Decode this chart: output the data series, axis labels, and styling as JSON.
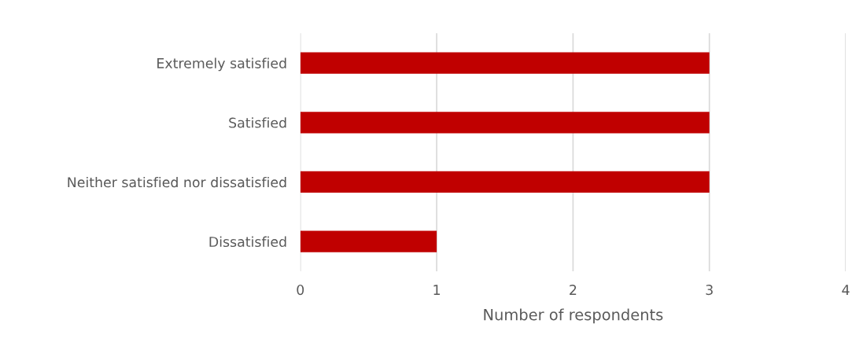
{
  "chart_data": {
    "type": "bar",
    "orientation": "horizontal",
    "xlabel": "Number of respondents",
    "categories": [
      "Extremely satisfied",
      "Satisfied",
      "Neither satisfied nor dissatisfied",
      "Dissatisfied"
    ],
    "values": [
      3,
      3,
      3,
      1
    ],
    "color": "#c00000",
    "xlim": [
      0,
      4
    ],
    "xticks": [
      0,
      1,
      2,
      3,
      4
    ],
    "grid": "x"
  }
}
